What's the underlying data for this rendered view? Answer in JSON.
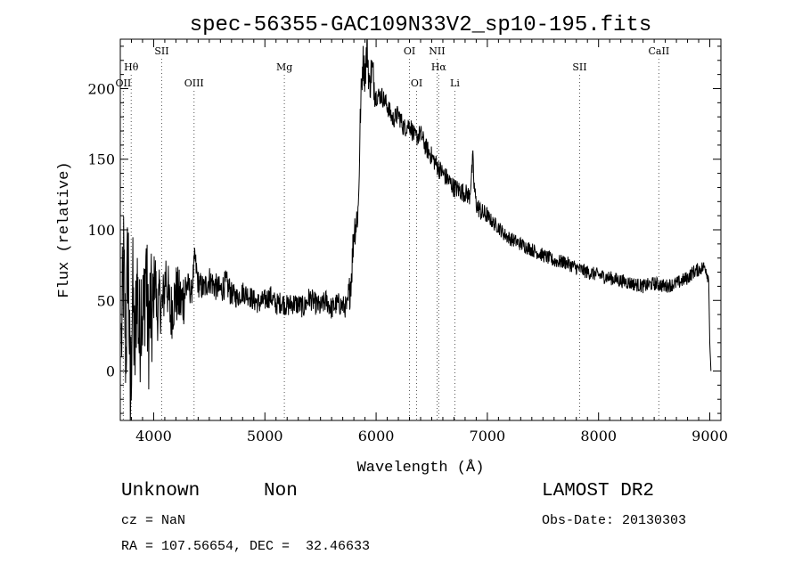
{
  "chart_data": {
    "type": "line",
    "title": "spec-56355-GAC109N33V2_sp10-195.fits",
    "xlabel": "Wavelength (Å)",
    "ylabel": "Flux (relative)",
    "xlim": [
      3700,
      9100
    ],
    "ylim": [
      -35,
      235
    ],
    "x_ticks": [
      4000,
      5000,
      6000,
      7000,
      8000,
      9000
    ],
    "y_ticks": [
      0,
      50,
      100,
      150,
      200
    ],
    "grid": false,
    "line_color": "#000000",
    "line_markers": [
      {
        "label": "Hθ",
        "x": 3798,
        "row": 1
      },
      {
        "label": "OII",
        "x": 3727,
        "row": 2
      },
      {
        "label": "SII",
        "x": 4072,
        "row": 0
      },
      {
        "label": "OIII",
        "x": 4363,
        "row": 2
      },
      {
        "label": "Mg",
        "x": 5175,
        "row": 1
      },
      {
        "label": "OI",
        "x": 6300,
        "row": 0
      },
      {
        "label": "OI",
        "x": 6364,
        "row": 2
      },
      {
        "label": "NII",
        "x": 6548,
        "row": 0
      },
      {
        "label": "Hα",
        "x": 6563,
        "row": 1
      },
      {
        "label": "Li",
        "x": 6708,
        "row": 2
      },
      {
        "label": "SII",
        "x": 7830,
        "row": 1
      },
      {
        "label": "CaII",
        "x": 8542,
        "row": 0
      }
    ],
    "series": [
      {
        "x": [
          3710,
          3730,
          3750,
          3770,
          3790,
          3810,
          3830,
          3850,
          3870,
          3890,
          3910,
          3930,
          3950,
          3970,
          3990,
          4010,
          4030,
          4050,
          4080,
          4110,
          4150,
          4200,
          4250,
          4300,
          4340,
          4370,
          4400,
          4450,
          4500,
          4550,
          4600,
          4650,
          4700,
          4750,
          4800,
          4850,
          4900,
          4950,
          5000,
          5050,
          5100,
          5150,
          5200,
          5250,
          5300,
          5350,
          5400,
          5450,
          5500,
          5550,
          5600,
          5650,
          5700,
          5740,
          5760,
          5780,
          5800,
          5820,
          5840,
          5860,
          5880,
          5900,
          5920,
          5940,
          5960,
          5980,
          6000,
          6050,
          6100,
          6150,
          6200,
          6250,
          6300,
          6350,
          6400,
          6450,
          6500,
          6550,
          6600,
          6650,
          6700,
          6750,
          6800,
          6840,
          6860,
          6870,
          6880,
          6900,
          6950,
          7000,
          7050,
          7100,
          7150,
          7200,
          7300,
          7400,
          7500,
          7600,
          7700,
          7800,
          7900,
          8000,
          8100,
          8200,
          8300,
          8400,
          8500,
          8600,
          8700,
          8800,
          8850,
          8900,
          8930,
          8960,
          8990,
          9000,
          9010
        ],
        "y": [
          20,
          75,
          10,
          95,
          -30,
          60,
          5,
          70,
          20,
          55,
          35,
          80,
          25,
          45,
          30,
          75,
          40,
          50,
          45,
          70,
          40,
          55,
          48,
          62,
          55,
          80,
          62,
          58,
          65,
          60,
          57,
          62,
          55,
          52,
          56,
          54,
          50,
          48,
          50,
          53,
          47,
          49,
          46,
          48,
          47,
          45,
          52,
          48,
          45,
          50,
          44,
          48,
          46,
          45,
          55,
          70,
          100,
          105,
          115,
          185,
          220,
          210,
          230,
          200,
          215,
          205,
          195,
          195,
          188,
          178,
          182,
          172,
          175,
          165,
          168,
          158,
          152,
          145,
          140,
          135,
          130,
          128,
          126,
          124,
          140,
          150,
          132,
          118,
          112,
          110,
          105,
          102,
          97,
          94,
          90,
          86,
          82,
          78,
          77,
          73,
          70,
          68,
          66,
          64,
          62,
          60,
          62,
          60,
          62,
          66,
          70,
          72,
          73,
          74,
          65,
          20,
          0
        ]
      }
    ]
  },
  "info": {
    "class_label": "Unknown",
    "subclass_label": "Non",
    "cz": "cz = NaN",
    "radec": "RA = 107.56654, DEC =  32.46633",
    "survey": "LAMOST DR2",
    "obs_date": "Obs-Date: 20130303"
  }
}
